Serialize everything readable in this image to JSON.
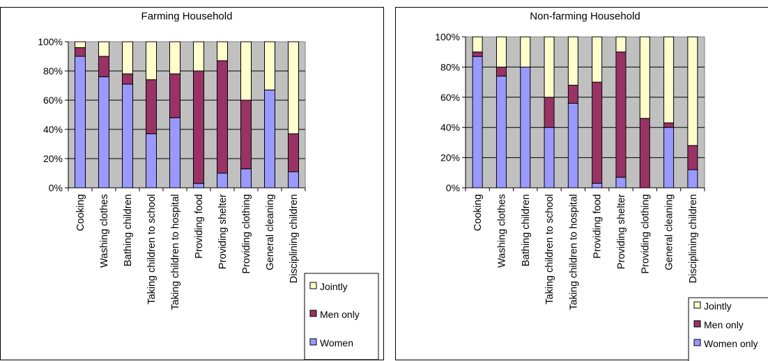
{
  "chart_data": [
    {
      "type": "bar",
      "stacked": true,
      "percent": true,
      "title": "Farming Household",
      "categories": [
        "Cooking",
        "Washing clothes",
        "Bathing children",
        "Taking children to school",
        "Taking children to hospital",
        "Providing  food",
        "Providing shelter",
        "Providing clothing",
        "General cleaning",
        "Disciplining children"
      ],
      "ylim": [
        0,
        100
      ],
      "yticks": [
        "0%",
        "20%",
        "40%",
        "60%",
        "80%",
        "100%"
      ],
      "grid": true,
      "legend_position": "bottom-right",
      "legend": [
        "Jointly",
        "Men only",
        "Women"
      ],
      "series": [
        {
          "name": "Women",
          "values": [
            90,
            76,
            71,
            37,
            48,
            3,
            10,
            13,
            67,
            11
          ]
        },
        {
          "name": "Men only",
          "values": [
            6,
            14,
            7,
            37,
            30,
            77,
            77,
            47,
            0,
            26
          ]
        },
        {
          "name": "Jointly",
          "values": [
            4,
            10,
            22,
            26,
            22,
            20,
            13,
            40,
            33,
            63
          ]
        }
      ],
      "colors": {
        "Women": "#9999ff",
        "Men only": "#993366",
        "Jointly": "#ffffcc",
        "plot_bg": "#c0c0c0"
      }
    },
    {
      "type": "bar",
      "stacked": true,
      "percent": true,
      "title": "Non-farming Household",
      "categories": [
        "Cooking",
        "Washing clothes",
        "Bathing children",
        "Taking children to school",
        "Taking children to hospital",
        "Providing  food",
        "Providing shelter",
        "Providing clothing",
        "General cleaning",
        "Disciplining children"
      ],
      "ylim": [
        0,
        100
      ],
      "yticks": [
        "0%",
        "20%",
        "40%",
        "60%",
        "80%",
        "100%"
      ],
      "grid": true,
      "legend_position": "bottom-right",
      "legend": [
        "Jointly",
        "Men only",
        "Women only"
      ],
      "series": [
        {
          "name": "Women only",
          "values": [
            87,
            74,
            80,
            40,
            56,
            3,
            7,
            0,
            40,
            12
          ]
        },
        {
          "name": "Men only",
          "values": [
            3,
            6,
            0,
            20,
            12,
            67,
            83,
            46,
            3,
            16
          ]
        },
        {
          "name": "Jointly",
          "values": [
            10,
            20,
            20,
            40,
            32,
            30,
            10,
            54,
            57,
            72
          ]
        }
      ],
      "colors": {
        "Women only": "#9999ff",
        "Men only": "#993366",
        "Jointly": "#ffffcc",
        "plot_bg": "#c0c0c0"
      }
    }
  ]
}
